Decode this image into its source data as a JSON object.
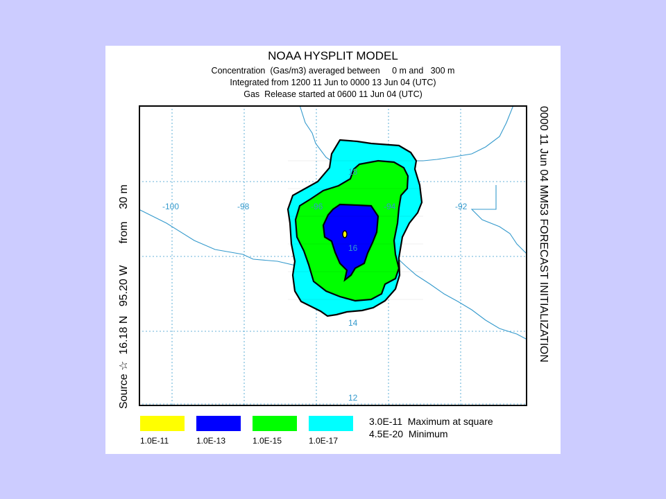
{
  "header": {
    "title": "NOAA HYSPLIT MODEL",
    "line1": "Concentration  (Gas/m3) averaged between     0 m and   300 m",
    "line2": "Integrated from 1200 11 Jun to 0000 13 Jun 04 (UTC)",
    "line3": "Gas  Release started at 0600 11 Jun 04 (UTC)"
  },
  "side_left": "Source ☆  16.18 N   95.20 W       from    30 m",
  "side_right": "0000 11 Jun 04 MM53 FORECAST INITIALIZATION",
  "map": {
    "lon_labels": [
      "-100",
      "-98",
      "-96",
      "-94",
      "-92"
    ],
    "lat_labels": [
      "18",
      "16",
      "14",
      "12"
    ]
  },
  "legend": [
    {
      "color": "#ffff00",
      "label": "1.0E-11"
    },
    {
      "color": "#0000ff",
      "label": "1.0E-13"
    },
    {
      "color": "#00ff00",
      "label": "1.0E-15"
    },
    {
      "color": "#00ffff",
      "label": "1.0E-17"
    }
  ],
  "stats": {
    "max": "3.0E-11  Maximum at square",
    "min": "4.5E-20  Minimum"
  },
  "colors": {
    "background": "#ccccff",
    "coastline": "#3399cc",
    "grid": "#3399cc"
  }
}
